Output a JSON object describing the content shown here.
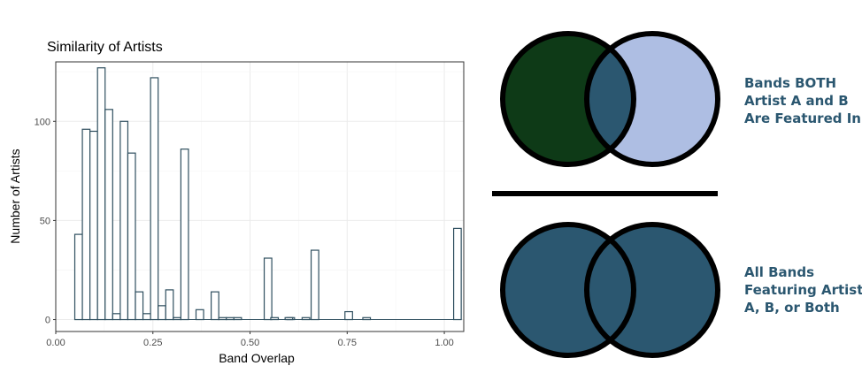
{
  "chart_data": {
    "type": "bar",
    "title": "Similarity of Artists",
    "xlabel": "Band Overlap",
    "ylabel": "Number of Artists",
    "xlim": [
      0.0,
      1.05
    ],
    "ylim": [
      -6,
      130
    ],
    "x_ticks": [
      "0.00",
      "0.25",
      "0.50",
      "0.75",
      "1.00"
    ],
    "x_tick_values": [
      0.0,
      0.25,
      0.5,
      0.75,
      1.0
    ],
    "y_ticks": [
      "0",
      "50",
      "100"
    ],
    "y_tick_values": [
      0,
      50,
      100
    ],
    "bin_width": 0.0195,
    "bins_start": 0.049,
    "values": [
      43,
      96,
      95,
      127,
      106,
      3,
      100,
      84,
      14,
      3,
      122,
      7,
      15,
      1,
      86,
      0,
      5,
      0,
      14,
      1,
      1,
      1,
      0,
      0,
      0,
      31,
      0,
      0,
      1,
      0,
      1,
      0,
      0,
      0,
      0,
      0,
      0,
      0,
      0,
      0,
      0,
      0,
      0,
      0,
      0,
      0,
      0,
      0,
      0,
      0,
      46
    ],
    "values_positioned": [
      {
        "x": 0.667,
        "y": 35
      },
      {
        "x": 0.754,
        "y": 4
      },
      {
        "x": 0.563,
        "y": 1
      },
      {
        "x": 0.6,
        "y": 1
      },
      {
        "x": 0.8,
        "y": 1
      }
    ],
    "grid": true,
    "bar_fill": "#ffffff",
    "bar_stroke": "#2f4f5f",
    "panel_border": "#333333",
    "grid_major": "#ebebeb"
  },
  "venn": {
    "top_caption": [
      "Bands BOTH",
      "Artist A and B",
      "Are Featured In"
    ],
    "bottom_caption": [
      "All Bands",
      "Featuring Artist",
      "A, B, or Both"
    ],
    "colors": {
      "dark_green": "#0e3a17",
      "light_blue": "#aebee3",
      "teal": "#2b5770",
      "outline": "#000000"
    }
  }
}
